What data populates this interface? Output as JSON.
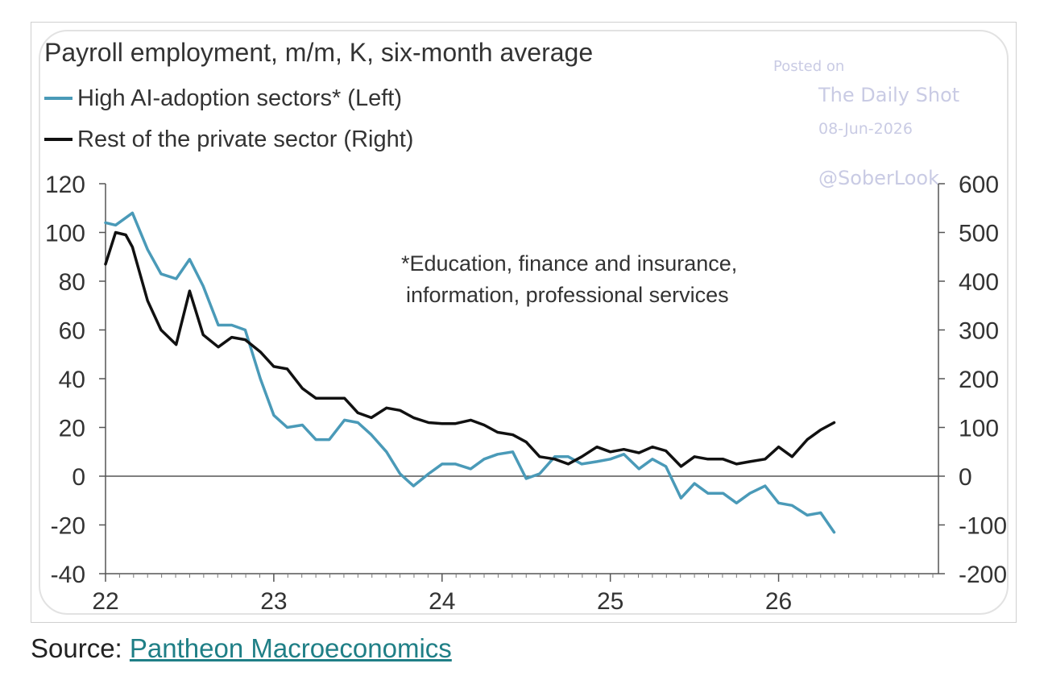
{
  "chart_data": {
    "type": "line",
    "title": "Payroll employment, m/m, K, six-month average",
    "annotation_lines": [
      "*Education, finance and insurance,",
      "information, professional services"
    ],
    "x_axis": {
      "ticks": [
        "22",
        "23",
        "24",
        "25",
        "26"
      ],
      "range": [
        2022.0,
        2026.95
      ]
    },
    "y_left": {
      "ticks": [
        "120",
        "100",
        "80",
        "60",
        "40",
        "20",
        "0",
        "-20",
        "-40"
      ],
      "range": [
        -40,
        120
      ]
    },
    "y_right": {
      "ticks": [
        "600",
        "500",
        "400",
        "300",
        "200",
        "100",
        "0",
        "-100",
        "-200"
      ],
      "range": [
        -200,
        600
      ]
    },
    "grid": false,
    "legend_position": "top-left",
    "series": [
      {
        "name": "High AI-adoption sectors* (Left)",
        "axis": "left",
        "color": "#4a9ab8",
        "x": [
          2022.0,
          2022.06,
          2022.16,
          2022.25,
          2022.33,
          2022.42,
          2022.5,
          2022.58,
          2022.67,
          2022.75,
          2022.83,
          2022.92,
          2023.0,
          2023.08,
          2023.17,
          2023.25,
          2023.33,
          2023.42,
          2023.5,
          2023.58,
          2023.67,
          2023.75,
          2023.83,
          2023.92,
          2024.0,
          2024.08,
          2024.17,
          2024.25,
          2024.33,
          2024.42,
          2024.5,
          2024.58,
          2024.67,
          2024.75,
          2024.83,
          2024.92,
          2025.0,
          2025.08,
          2025.17,
          2025.25,
          2025.33,
          2025.42,
          2025.5,
          2025.58,
          2025.67,
          2025.75,
          2025.83,
          2025.92,
          2026.0,
          2026.08,
          2026.17,
          2026.25,
          2026.33
        ],
        "values": [
          104,
          103,
          108,
          93,
          83,
          81,
          89,
          78,
          62,
          62,
          60,
          40,
          25,
          20,
          21,
          15,
          15,
          23,
          22,
          17,
          10,
          1,
          -4,
          1,
          5,
          5,
          3,
          7,
          9,
          10,
          -1,
          1,
          8,
          8,
          5,
          6,
          7,
          9,
          3,
          7,
          4,
          -9,
          -3,
          -7,
          -7,
          -11,
          -7,
          -4,
          -11,
          -12,
          -16,
          -15,
          -23
        ]
      },
      {
        "name": "Rest of the private sector (Right)",
        "axis": "right",
        "color": "#111111",
        "x": [
          2022.0,
          2022.06,
          2022.12,
          2022.16,
          2022.25,
          2022.33,
          2022.42,
          2022.5,
          2022.58,
          2022.67,
          2022.75,
          2022.83,
          2022.92,
          2023.0,
          2023.08,
          2023.17,
          2023.25,
          2023.33,
          2023.42,
          2023.5,
          2023.58,
          2023.67,
          2023.75,
          2023.83,
          2023.92,
          2024.0,
          2024.08,
          2024.17,
          2024.25,
          2024.33,
          2024.42,
          2024.5,
          2024.58,
          2024.67,
          2024.75,
          2024.83,
          2024.92,
          2025.0,
          2025.08,
          2025.17,
          2025.25,
          2025.33,
          2025.42,
          2025.5,
          2025.58,
          2025.67,
          2025.75,
          2025.83,
          2025.92,
          2026.0,
          2026.08,
          2026.17,
          2026.25,
          2026.33
        ],
        "values": [
          435,
          500,
          495,
          470,
          360,
          300,
          270,
          380,
          290,
          265,
          285,
          280,
          255,
          225,
          220,
          180,
          160,
          160,
          160,
          130,
          120,
          140,
          135,
          120,
          110,
          108,
          108,
          115,
          105,
          90,
          85,
          70,
          40,
          35,
          25,
          40,
          60,
          50,
          55,
          48,
          60,
          52,
          20,
          40,
          35,
          35,
          25,
          30,
          35,
          60,
          40,
          75,
          95,
          110
        ]
      }
    ]
  },
  "watermark": {
    "posted": "Posted on",
    "site": "The Daily Shot",
    "date": "08-Jun-2026",
    "handle": "@SoberLook"
  },
  "source": {
    "label": "Source:",
    "link": "Pantheon Macroeconomics"
  },
  "colors": {
    "left_series": "#4a9ab8",
    "right_series": "#111111",
    "axis": "#555555",
    "link": "#1f7f86"
  }
}
